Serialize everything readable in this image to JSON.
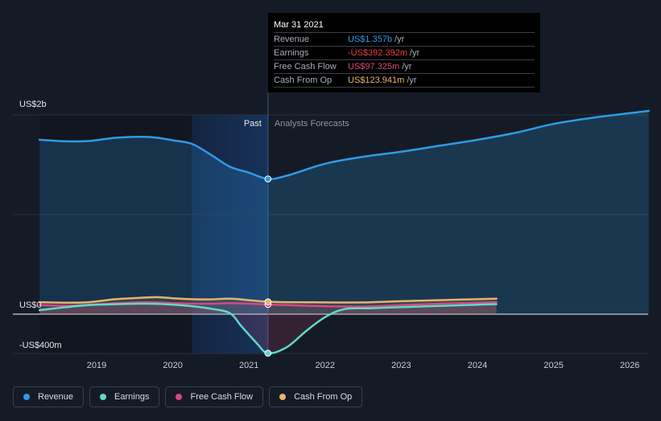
{
  "tooltip": {
    "date": "Mar 31 2021",
    "rows": [
      {
        "label": "Revenue",
        "value": "US$1.357b",
        "unit": "/yr",
        "color": "#2f9be6"
      },
      {
        "label": "Earnings",
        "value": "-US$392.392m",
        "unit": "/yr",
        "color": "#e8413c"
      },
      {
        "label": "Free Cash Flow",
        "value": "US$97.325m",
        "unit": "/yr",
        "color": "#d8487d"
      },
      {
        "label": "Cash From Op",
        "value": "US$123.941m",
        "unit": "/yr",
        "color": "#e6b46d"
      }
    ]
  },
  "legend": [
    {
      "label": "Revenue",
      "color": "#2f9be6"
    },
    {
      "label": "Earnings",
      "color": "#5fd9c9"
    },
    {
      "label": "Free Cash Flow",
      "color": "#d8487d"
    },
    {
      "label": "Cash From Op",
      "color": "#e6b46d"
    }
  ],
  "chart_data": {
    "type": "line",
    "ytick_labels": [
      "US$2b",
      "US$0",
      "-US$400m"
    ],
    "ylim": [
      -400,
      2000
    ],
    "xlim": [
      2018.0,
      2026.25
    ],
    "xticks": [
      2019,
      2020,
      2021,
      2022,
      2023,
      2024,
      2025,
      2026
    ],
    "xtick_labels": [
      "2019",
      "2020",
      "2021",
      "2022",
      "2023",
      "2024",
      "2025",
      "2026"
    ],
    "past_label": "Past",
    "forecast_label": "Analysts Forecasts",
    "past_end": 2021.25,
    "highlight_start": 2020.25,
    "series": [
      {
        "name": "Revenue",
        "color": "#2f9be6",
        "points": [
          [
            2018.25,
            1750
          ],
          [
            2018.6,
            1735
          ],
          [
            2018.9,
            1738
          ],
          [
            2019.25,
            1770
          ],
          [
            2019.6,
            1780
          ],
          [
            2019.8,
            1770
          ],
          [
            2020.0,
            1745
          ],
          [
            2020.25,
            1710
          ],
          [
            2020.5,
            1600
          ],
          [
            2020.75,
            1480
          ],
          [
            2021.0,
            1420
          ],
          [
            2021.25,
            1357
          ],
          [
            2021.5,
            1390
          ],
          [
            2022.0,
            1510
          ],
          [
            2022.5,
            1580
          ],
          [
            2023.0,
            1630
          ],
          [
            2023.5,
            1690
          ],
          [
            2024.0,
            1750
          ],
          [
            2024.5,
            1820
          ],
          [
            2025.0,
            1910
          ],
          [
            2025.5,
            1970
          ],
          [
            2026.25,
            2040
          ]
        ]
      },
      {
        "name": "Earnings",
        "color": "#5fd9c9",
        "points": [
          [
            2018.25,
            40
          ],
          [
            2018.6,
            70
          ],
          [
            2018.9,
            90
          ],
          [
            2019.25,
            100
          ],
          [
            2019.6,
            105
          ],
          [
            2019.8,
            103
          ],
          [
            2020.0,
            95
          ],
          [
            2020.25,
            80
          ],
          [
            2020.5,
            55
          ],
          [
            2020.75,
            10
          ],
          [
            2020.9,
            -120
          ],
          [
            2021.1,
            -290
          ],
          [
            2021.25,
            -392
          ],
          [
            2021.5,
            -330
          ],
          [
            2021.75,
            -170
          ],
          [
            2022.0,
            -30
          ],
          [
            2022.25,
            50
          ],
          [
            2022.6,
            60
          ],
          [
            2023.0,
            70
          ],
          [
            2023.5,
            82
          ],
          [
            2024.0,
            95
          ],
          [
            2024.25,
            100
          ]
        ]
      },
      {
        "name": "Free Cash Flow",
        "color": "#d8487d",
        "points": [
          [
            2018.25,
            90
          ],
          [
            2018.6,
            85
          ],
          [
            2018.9,
            95
          ],
          [
            2019.25,
            110
          ],
          [
            2019.6,
            120
          ],
          [
            2019.8,
            118
          ],
          [
            2020.0,
            110
          ],
          [
            2020.25,
            105
          ],
          [
            2020.5,
            105
          ],
          [
            2020.75,
            110
          ],
          [
            2021.0,
            105
          ],
          [
            2021.25,
            97
          ],
          [
            2021.5,
            90
          ],
          [
            2022.0,
            80
          ],
          [
            2022.5,
            75
          ],
          [
            2023.0,
            90
          ],
          [
            2023.5,
            105
          ],
          [
            2024.0,
            115
          ],
          [
            2024.25,
            120
          ]
        ]
      },
      {
        "name": "Cash From Op",
        "color": "#e6b46d",
        "points": [
          [
            2018.25,
            120
          ],
          [
            2018.6,
            115
          ],
          [
            2018.9,
            120
          ],
          [
            2019.25,
            150
          ],
          [
            2019.6,
            165
          ],
          [
            2019.8,
            170
          ],
          [
            2020.0,
            160
          ],
          [
            2020.25,
            150
          ],
          [
            2020.5,
            148
          ],
          [
            2020.75,
            155
          ],
          [
            2021.0,
            140
          ],
          [
            2021.25,
            124
          ],
          [
            2021.5,
            120
          ],
          [
            2022.0,
            118
          ],
          [
            2022.5,
            118
          ],
          [
            2023.0,
            130
          ],
          [
            2023.5,
            140
          ],
          [
            2024.0,
            150
          ],
          [
            2024.25,
            155
          ]
        ]
      }
    ]
  }
}
